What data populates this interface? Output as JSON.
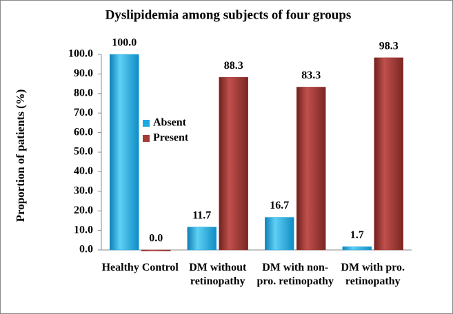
{
  "chart_data": {
    "type": "bar",
    "title": "Dyslipidemia among subjects of four groups",
    "y_label": "Proportion of patients (%)",
    "categories": [
      "Healthy Control",
      "DM without retinopathy",
      "DM with non-pro. retinopathy",
      "DM with pro. retinopathy"
    ],
    "series": [
      {
        "name": "Absent",
        "color": "#19a9e3",
        "values": [
          100.0,
          11.7,
          16.7,
          1.7
        ],
        "value_labels": [
          "100.0",
          "11.7",
          "16.7",
          "1.7"
        ]
      },
      {
        "name": "Present",
        "color": "#a33b37",
        "values": [
          0.0,
          88.3,
          83.3,
          98.3
        ],
        "value_labels": [
          "0.0",
          "88.3",
          "83.3",
          "98.3"
        ]
      }
    ],
    "ylim": [
      0,
      100
    ],
    "yticks": [
      {
        "value": 0,
        "label": "0.0"
      },
      {
        "value": 10,
        "label": "10.0"
      },
      {
        "value": 20,
        "label": "20.0"
      },
      {
        "value": 30,
        "label": "30.0"
      },
      {
        "value": 40,
        "label": "40.0"
      },
      {
        "value": 50,
        "label": "50.0"
      },
      {
        "value": 60,
        "label": "60.0"
      },
      {
        "value": 70,
        "label": "70.0"
      },
      {
        "value": 80,
        "label": "80.0"
      },
      {
        "value": 90,
        "label": "90.0"
      },
      {
        "value": 100,
        "label": "100.0"
      }
    ],
    "legend": "center-left"
  }
}
